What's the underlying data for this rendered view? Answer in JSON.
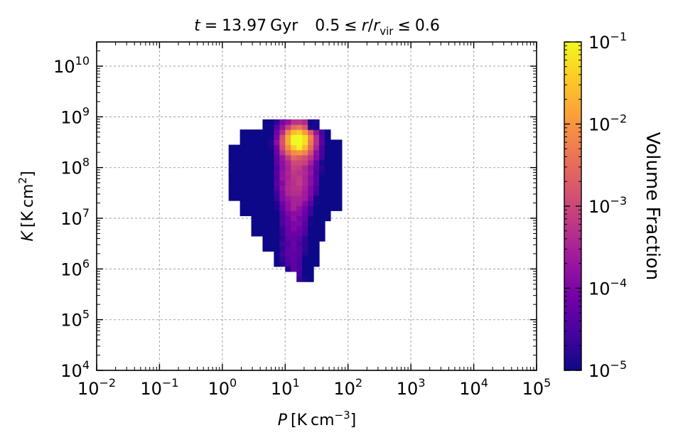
{
  "chart_data": {
    "type": "heatmap",
    "title_parts": [
      "t",
      "=",
      "13.97",
      "Gyr",
      "0.5",
      "≤",
      "r",
      "/",
      "r",
      "vir",
      "≤",
      "0.6"
    ],
    "xlabel_parts": [
      "P",
      "[K",
      "cm",
      "−3",
      "]"
    ],
    "ylabel_parts": [
      "K",
      "[K",
      "cm",
      "2",
      "]"
    ],
    "x_scale": "log",
    "y_scale": "log",
    "xlim": [
      0.01,
      100000
    ],
    "ylim": [
      10000,
      30000000000
    ],
    "x_ticks": [
      {
        "base": "10",
        "exp": "−2",
        "log10": -2
      },
      {
        "base": "10",
        "exp": "−1",
        "log10": -1
      },
      {
        "base": "10",
        "exp": "0",
        "log10": 0
      },
      {
        "base": "10",
        "exp": "1",
        "log10": 1
      },
      {
        "base": "10",
        "exp": "2",
        "log10": 2
      },
      {
        "base": "10",
        "exp": "3",
        "log10": 3
      },
      {
        "base": "10",
        "exp": "4",
        "log10": 4
      },
      {
        "base": "10",
        "exp": "5",
        "log10": 5
      }
    ],
    "y_ticks": [
      {
        "base": "10",
        "exp": "4",
        "log10": 4
      },
      {
        "base": "10",
        "exp": "5",
        "log10": 5
      },
      {
        "base": "10",
        "exp": "6",
        "log10": 6
      },
      {
        "base": "10",
        "exp": "7",
        "log10": 7
      },
      {
        "base": "10",
        "exp": "8",
        "log10": 8
      },
      {
        "base": "10",
        "exp": "9",
        "log10": 9
      },
      {
        "base": "10",
        "exp": "10",
        "log10": 10
      }
    ],
    "grid": true,
    "colorbar": {
      "label": "Volume Fraction",
      "scale": "log",
      "range": [
        1e-05,
        0.1
      ],
      "ticks": [
        {
          "base": "10",
          "exp": "−5",
          "log10": -5
        },
        {
          "base": "10",
          "exp": "−4",
          "log10": -4
        },
        {
          "base": "10",
          "exp": "−3",
          "log10": -3
        },
        {
          "base": "10",
          "exp": "−2",
          "log10": -2
        },
        {
          "base": "10",
          "exp": "−1",
          "log10": -1
        }
      ],
      "colormap": "plasma",
      "colors": [
        "#0d0887",
        "#46039f",
        "#7201a8",
        "#9c179e",
        "#bd3786",
        "#d8576b",
        "#ed7953",
        "#fb9f3a",
        "#fdca26",
        "#f0f921"
      ]
    },
    "bins": {
      "log10P_range": [
        0.1,
        1.9
      ],
      "log10K_range": [
        5.75,
        8.95
      ],
      "n_x": 20,
      "n_y": 32,
      "value_unit": "log10 volume fraction",
      "peak": {
        "log10P": 1.2,
        "log10K": 8.55,
        "log10_fraction": -1.15
      },
      "ridge_log10P": 1.15,
      "approx_total_bins": 460
    }
  }
}
